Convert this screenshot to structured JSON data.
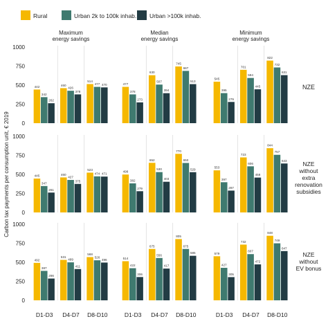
{
  "chart_data": {
    "type": "bar",
    "legend": {
      "placement": "top-left",
      "entries": [
        {
          "name": "Rural",
          "color": "#f5b800"
        },
        {
          "name": "Urban 2k to 100k inhab.",
          "color": "#3f7a6f"
        },
        {
          "name": "Urban >100k inhab.",
          "color": "#223c44"
        }
      ]
    },
    "ylabel": "Carbon tax payments per consumption unit, € 2019",
    "ylim": [
      0,
      1000
    ],
    "yticks": [
      "0",
      "250",
      "500",
      "750",
      "1000"
    ],
    "grid": "vertical separators between categories",
    "columns": [
      "Maximum\nenergy savings",
      "Median\nenergy savings",
      "Minimum\nenergy savings"
    ],
    "rows": [
      "NZE",
      "NZE\nwithout\nextra\nrenovation\nsubsidies",
      "NZE\nwithout\nEV bonus"
    ],
    "categories": [
      "D1-D3",
      "D4-D7",
      "D8-D10"
    ],
    "series": [
      "Rural",
      "Urban 2k to 100k inhab.",
      "Urban >100k inhab."
    ],
    "panels": [
      {
        "row": 0,
        "col": 0,
        "values": [
          [
            442,
            342,
            262
          ],
          [
            460,
            426,
            378
          ],
          [
            514,
            477,
            470
          ]
        ]
      },
      {
        "row": 0,
        "col": 1,
        "values": [
          [
            477,
            378,
            273
          ],
          [
            630,
            507,
            394
          ],
          [
            745,
            687,
            513
          ]
        ]
      },
      {
        "row": 0,
        "col": 2,
        "values": [
          [
            545,
            395,
            279
          ],
          [
            701,
            594,
            445
          ],
          [
            822,
            732,
            631
          ]
        ]
      },
      {
        "row": 1,
        "col": 0,
        "values": [
          [
            445,
            347,
            261
          ],
          [
            460,
            427,
            375
          ],
          [
            523,
            474,
            471
          ]
        ]
      },
      {
        "row": 1,
        "col": 1,
        "values": [
          [
            498,
            382,
            279
          ],
          [
            652,
            530,
            403
          ],
          [
            770,
            650,
            529
          ]
        ]
      },
      {
        "row": 1,
        "col": 2,
        "values": [
          [
            553,
            397,
            287
          ],
          [
            723,
            606,
            458
          ],
          [
            844,
            757,
            643
          ]
        ]
      },
      {
        "row": 2,
        "col": 0,
        "values": [
          [
            492,
            387,
            286
          ],
          [
            531,
            499,
            411
          ],
          [
            568,
            526,
            496
          ]
        ]
      },
      {
        "row": 2,
        "col": 1,
        "values": [
          [
            514,
            422,
            306
          ],
          [
            675,
            556,
            417
          ],
          [
            805,
            675,
            585
          ]
        ]
      },
      {
        "row": 2,
        "col": 2,
        "values": [
          [
            579,
            427,
            305
          ],
          [
            732,
            607,
            472
          ],
          [
            848,
            749,
            647
          ]
        ]
      }
    ]
  }
}
